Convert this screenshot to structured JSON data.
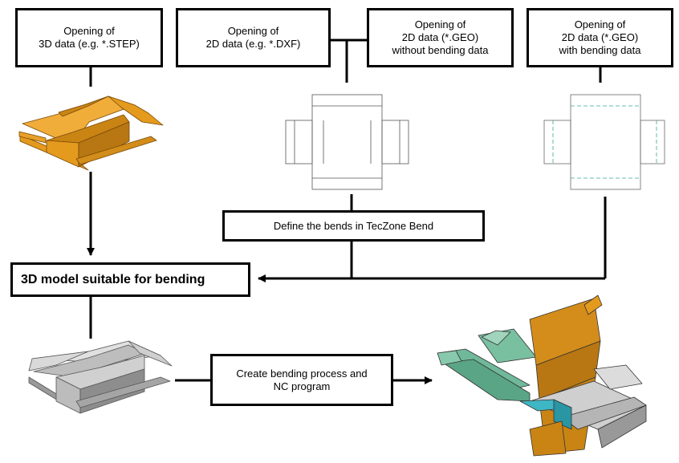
{
  "boxes": {
    "open_3d": {
      "line1": "Opening of",
      "line2": "3D data (e.g. *.STEP)"
    },
    "open_2d_dxf": {
      "line1": "Opening of",
      "line2": "2D data (e.g. *.DXF)"
    },
    "open_geo_no_bend": {
      "line1": "Opening of",
      "line2": "2D data (*.GEO)",
      "line3": "without bending data"
    },
    "open_geo_bend": {
      "line1": "Opening of",
      "line2": "2D data (*.GEO)",
      "line3": "with bending data"
    },
    "define_bends": {
      "label": "Define the bends in TecZone Bend"
    },
    "model_suitable": {
      "label": "3D model suitable for bending"
    },
    "create_process": {
      "line1": "Create bending process and",
      "line2": "NC program"
    }
  },
  "colors": {
    "box_orange": "#e49a1d",
    "box_orange_dark": "#a8650c",
    "sheet_gray": "#d4d4d4",
    "sheet_gray_dark": "#8d8d8d",
    "machine_green": "#6fb99a",
    "tool_cyan": "#3fb6c4",
    "bend_line_teal": "#3aa89a",
    "outline_gray": "#777777"
  }
}
